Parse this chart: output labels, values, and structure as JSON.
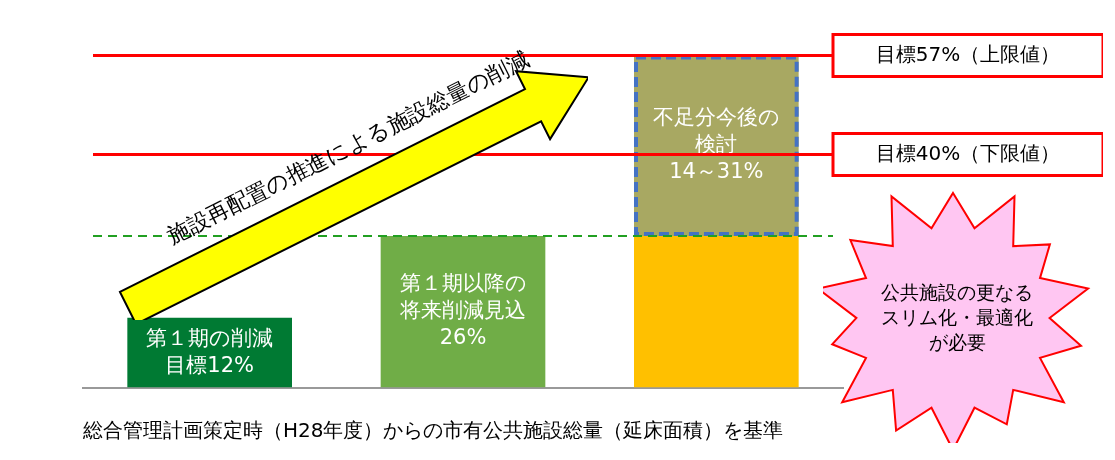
{
  "chart_data": {
    "type": "bar",
    "categories": [
      null,
      null,
      null
    ],
    "stacked": true,
    "legend": false,
    "grid": false,
    "xlabel": "総合管理計画策定時（H28年度）からの市有公共施設総量（延床面積）を基準",
    "series": [
      {
        "colors": [
          "#007a33",
          "#70ad47",
          "#ffc000"
        ],
        "values": [
          12,
          26,
          26
        ],
        "value_labels": [
          "第１期の削減目標12%",
          "第１期以降の将来削減見込26%",
          null
        ]
      },
      {
        "color": "#a8a862",
        "values": [
          null,
          null,
          31
        ],
        "line_style": "dashed",
        "value_labels": [
          null,
          null,
          "不足分今後の検討14～31%"
        ]
      }
    ],
    "ref_lines": [
      {
        "axis": "y",
        "value": 57,
        "label": "目標57%（上限値）",
        "color": "#ff0000",
        "line_style": "solid"
      },
      {
        "axis": "y",
        "value": 40,
        "label": "目標40%（下限値）",
        "color": "#ff0000",
        "line_style": "solid"
      },
      {
        "axis": "y",
        "value": 26,
        "label": null,
        "color": "#22a022",
        "line_style": "dashed"
      }
    ],
    "annotations": [
      "施設再配置の推進による施設総量の削減",
      "公共施設の更なるスリム化・最適化が必要"
    ]
  }
}
